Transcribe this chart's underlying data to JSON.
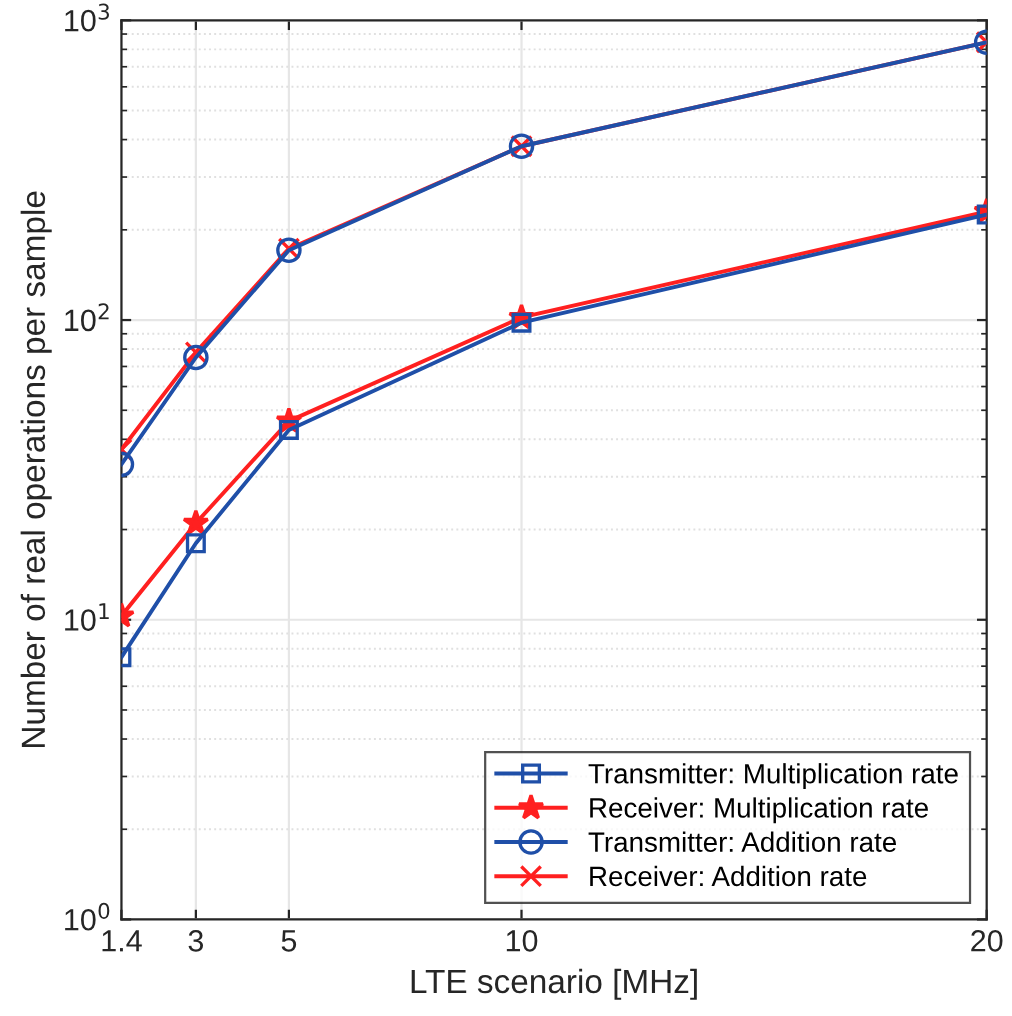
{
  "chart_data": {
    "type": "line",
    "xlabel": "LTE scenario [MHz]",
    "ylabel": "Number of real operations per sample",
    "log": "y",
    "grid": true,
    "legend": "bottom right",
    "x": [
      1.4,
      3,
      5,
      10,
      20
    ],
    "xlim": [
      1.4,
      20
    ],
    "xticks": [
      1.4,
      3,
      5,
      10,
      20
    ],
    "ylim": [
      1,
      1000
    ],
    "yticks": [
      {
        "value": 1,
        "label": "10$^{0}$"
      },
      {
        "value": 10,
        "label": "10$^{1}$"
      },
      {
        "value": 100,
        "label": "10$^{2}$"
      },
      {
        "value": 1000,
        "label": "10$^{3}$"
      }
    ],
    "series": [
      {
        "name": "Transmitter: Multiplication rate",
        "color": "#1f4fa8",
        "marker": "square",
        "values": [
          7.5,
          18,
          43,
          98,
          225
        ]
      },
      {
        "name": "Receiver: Multiplication rate",
        "color": "#ff2020",
        "marker": "star",
        "values": [
          10.3,
          21,
          46,
          102,
          230
        ]
      },
      {
        "name": "Transmitter: Addition rate",
        "color": "#1f4fa8",
        "marker": "circle",
        "values": [
          33,
          75,
          171,
          380,
          845
        ]
      },
      {
        "name": "Receiver: Addition rate",
        "color": "#ff2020",
        "marker": "cross",
        "values": [
          37,
          78,
          173,
          380,
          845
        ]
      }
    ]
  }
}
